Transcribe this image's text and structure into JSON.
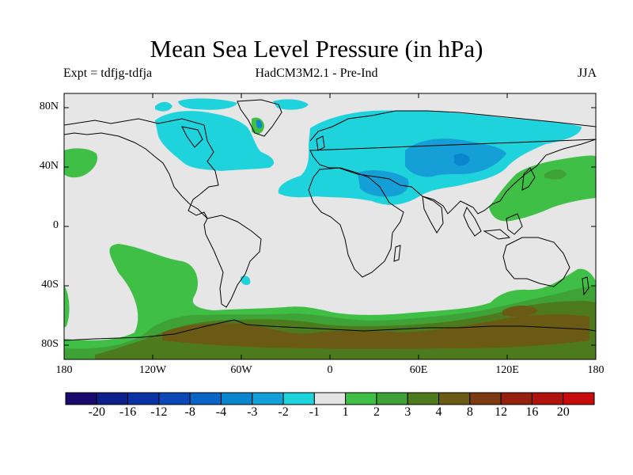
{
  "title": "Mean Sea Level Pressure (in hPa)",
  "subtitle_left": "Expt = tdfjg-tdfja",
  "subtitle_center": "HadCM3M2.1 - Pre-Ind",
  "subtitle_right": "JJA",
  "y_axis": [
    "80N",
    "40N",
    "0",
    "40S",
    "80S"
  ],
  "x_axis": [
    "180",
    "120W",
    "60W",
    "0",
    "60E",
    "120E",
    "180"
  ],
  "colorbar": {
    "labels": [
      "-20",
      "-16",
      "-12",
      "-8",
      "-4",
      "-3",
      "-2",
      "-1",
      "1",
      "2",
      "3",
      "4",
      "8",
      "12",
      "16",
      "20"
    ],
    "colors": [
      "#1a0a6e",
      "#0c1f8a",
      "#0b32a5",
      "#0a48b8",
      "#0865c6",
      "#0a86cf",
      "#149fd6",
      "#1fd3dd",
      "#e4e4e4",
      "#3fbf46",
      "#3ea237",
      "#4e7a1e",
      "#6b5a14",
      "#7c3a10",
      "#962010",
      "#b0120e",
      "#c80c0c"
    ]
  },
  "colors": {
    "background": "#e6e6e6",
    "neg_light": "#1fd3dd",
    "neg_mid": "#149fd6",
    "neg_dark": "#0a86cf",
    "pos_light": "#3fbf46",
    "pos_mid": "#3ea237",
    "pos_dark": "#4e7a1e",
    "pos_brown": "#6b5a14",
    "coast": "#000000"
  }
}
